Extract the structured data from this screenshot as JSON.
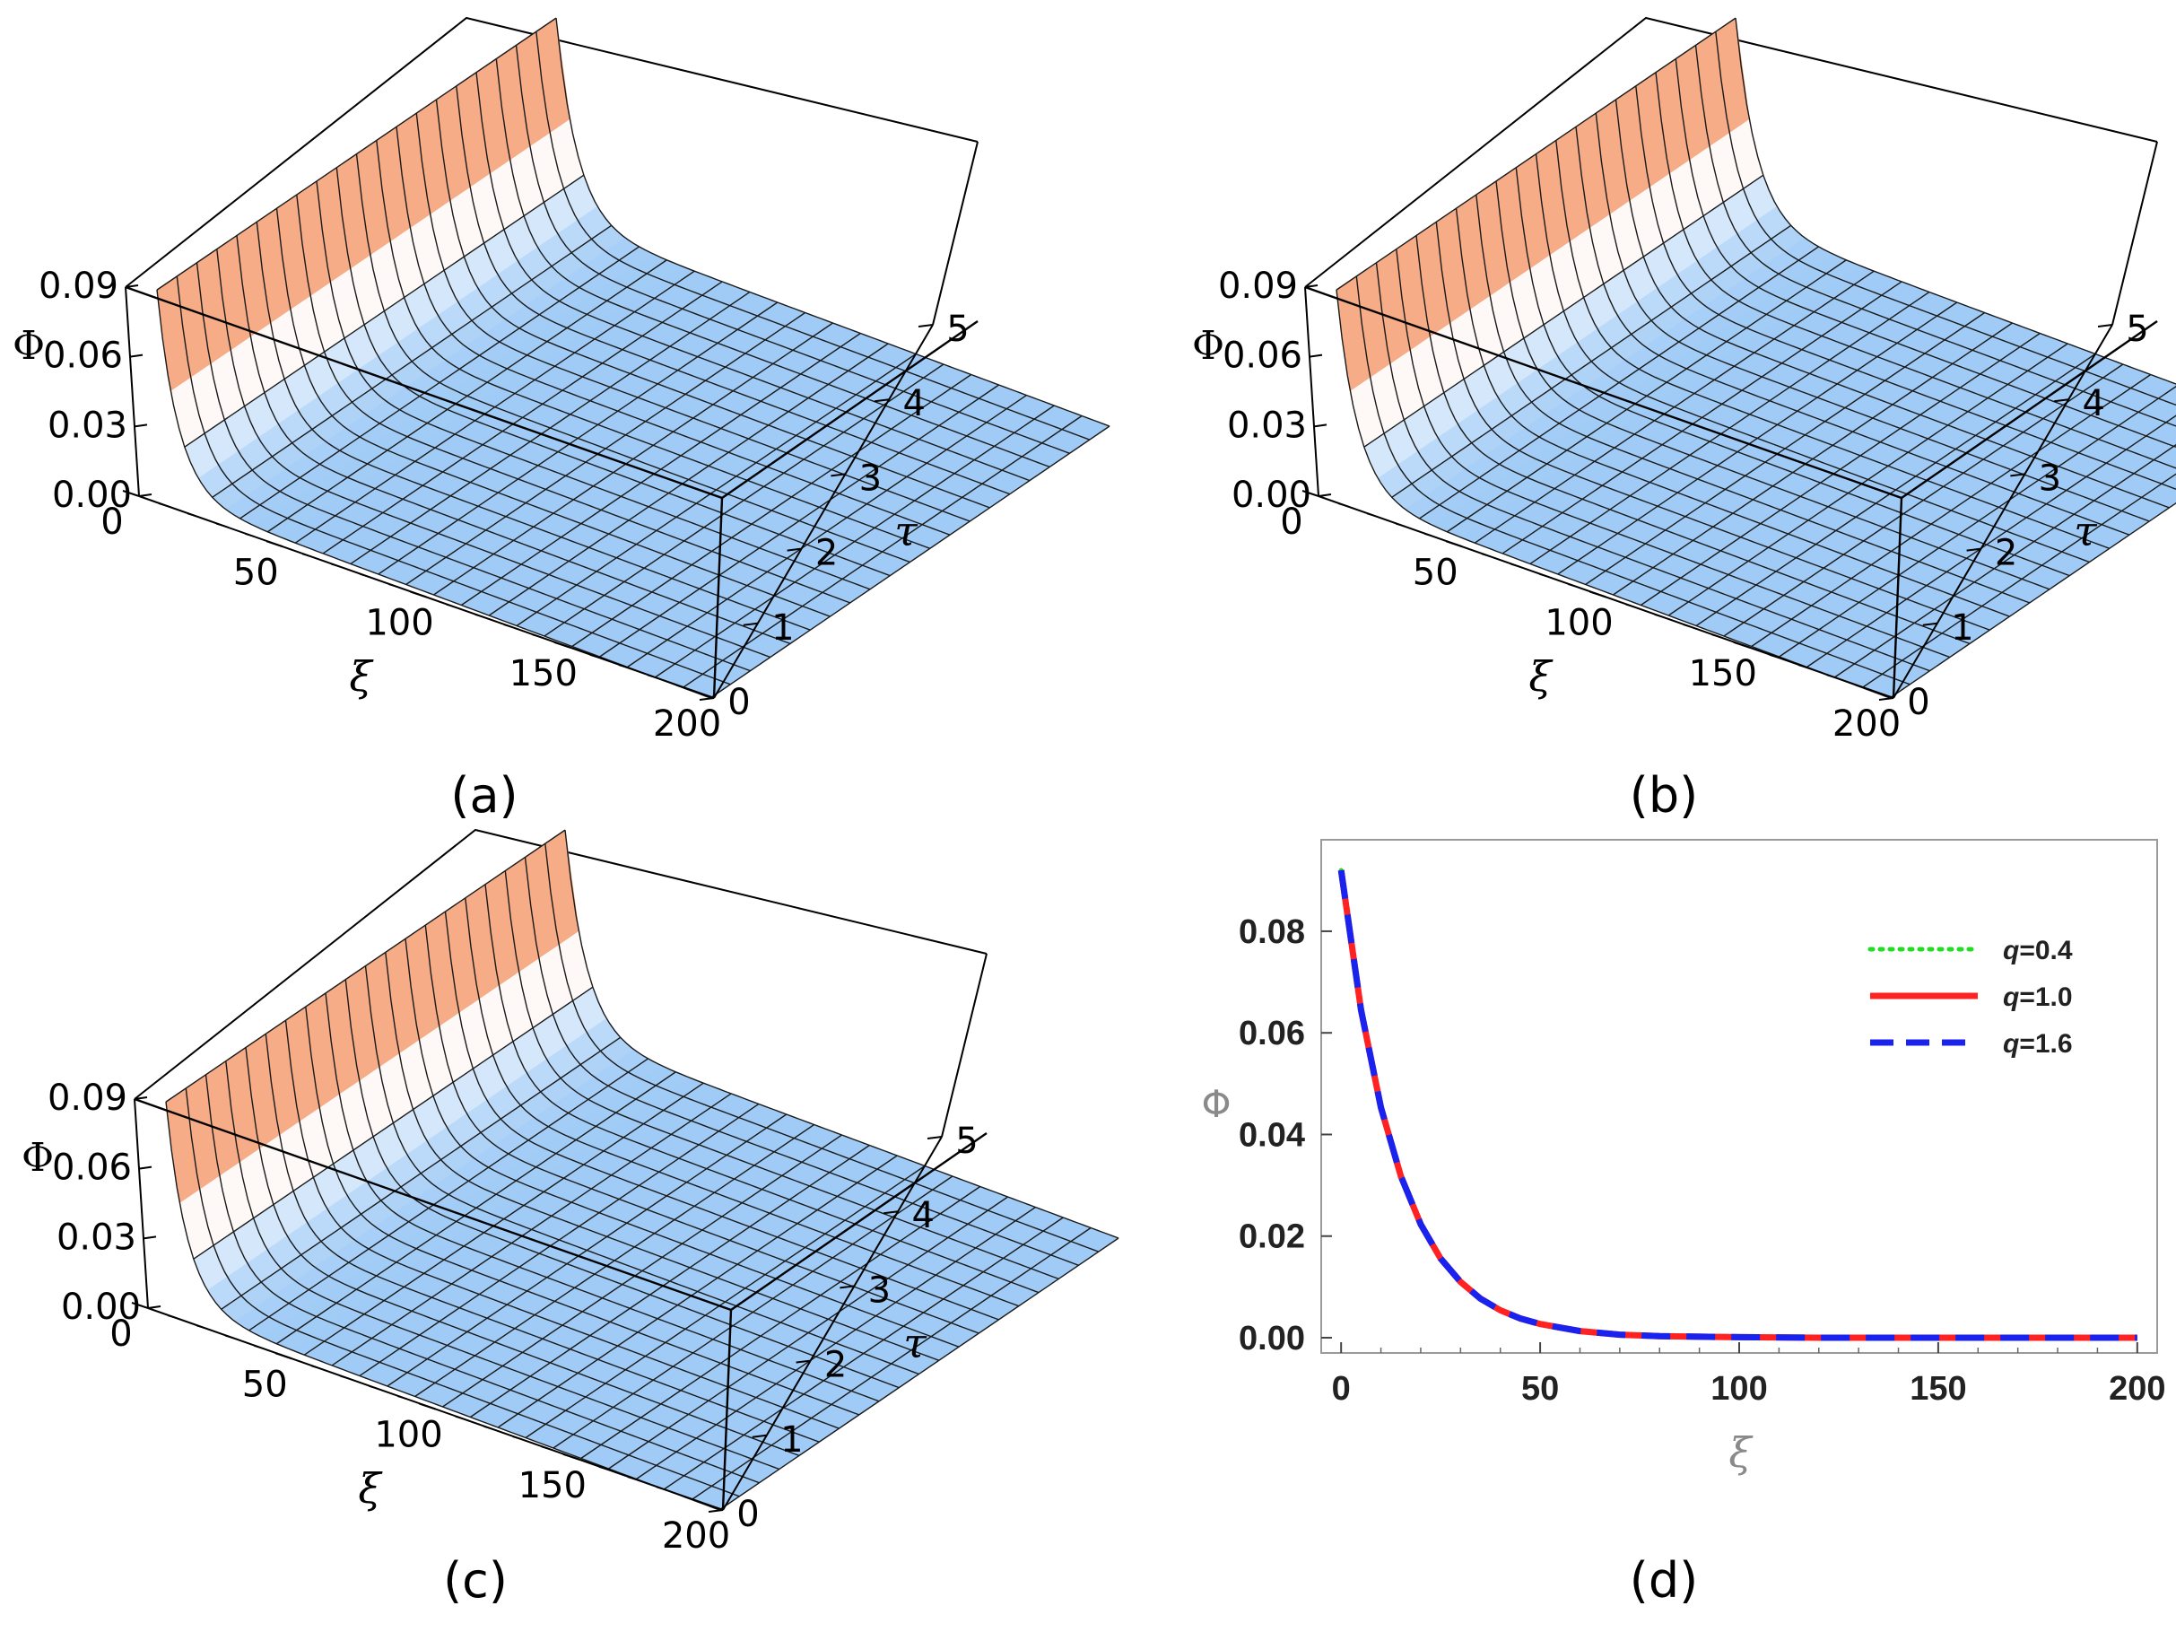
{
  "chart_data": [
    {
      "panel": "(a)",
      "type": "surface",
      "zlabel": "Φ",
      "xlabel": "ξ",
      "ylabel": "τ",
      "x_ticks": [
        "0",
        "50",
        "100",
        "150",
        "200"
      ],
      "y_ticks": [
        "0",
        "1",
        "2",
        "3",
        "4",
        "5"
      ],
      "z_ticks": [
        "0.00",
        "0.03",
        "0.06",
        "0.09"
      ],
      "xlim": [
        0,
        200
      ],
      "ylim": [
        0,
        5
      ],
      "zlim": [
        0,
        0.09
      ],
      "surface": {
        "peak": 0.092,
        "decay": 0.13
      },
      "colors": {
        "high": "#f4a67e",
        "mid": "#ffffff",
        "low": "#9fcbf6"
      }
    },
    {
      "panel": "(b)",
      "type": "surface",
      "zlabel": "Φ",
      "xlabel": "ξ",
      "ylabel": "τ",
      "x_ticks": [
        "0",
        "50",
        "100",
        "150",
        "200"
      ],
      "y_ticks": [
        "0",
        "1",
        "2",
        "3",
        "4",
        "5"
      ],
      "z_ticks": [
        "0.00",
        "0.03",
        "0.06",
        "0.09"
      ],
      "xlim": [
        0,
        200
      ],
      "ylim": [
        0,
        5
      ],
      "zlim": [
        0,
        0.09
      ],
      "surface": {
        "peak": 0.092,
        "decay": 0.13
      },
      "colors": {
        "high": "#f4a67e",
        "mid": "#ffffff",
        "low": "#9fcbf6"
      }
    },
    {
      "panel": "(c)",
      "type": "surface",
      "zlabel": "Φ",
      "xlabel": "ξ",
      "ylabel": "τ",
      "x_ticks": [
        "0",
        "50",
        "100",
        "150",
        "200"
      ],
      "y_ticks": [
        "0",
        "1",
        "2",
        "3",
        "4",
        "5"
      ],
      "z_ticks": [
        "0.00",
        "0.03",
        "0.06",
        "0.09"
      ],
      "xlim": [
        0,
        200
      ],
      "ylim": [
        0,
        5
      ],
      "zlim": [
        0,
        0.09
      ],
      "surface": {
        "peak": 0.092,
        "decay": 0.13
      },
      "colors": {
        "high": "#f4a67e",
        "mid": "#ffffff",
        "low": "#9fcbf6"
      }
    },
    {
      "panel": "(d)",
      "type": "line",
      "xlabel": "ξ",
      "ylabel": "Φ",
      "xlim": [
        -5,
        205
      ],
      "ylim": [
        -0.003,
        0.098
      ],
      "x_ticks": [
        0,
        50,
        100,
        150,
        200
      ],
      "y_ticks": [
        0.0,
        0.02,
        0.04,
        0.06,
        0.08
      ],
      "y_tick_labels": [
        "0.00",
        "0.02",
        "0.04",
        "0.06",
        "0.08"
      ],
      "x": [
        0,
        5,
        10,
        15,
        20,
        25,
        30,
        35,
        40,
        45,
        50,
        60,
        70,
        80,
        100,
        120,
        140,
        160,
        180,
        200
      ],
      "series": [
        {
          "name": "q=0.4",
          "q_label": "q",
          "q_value": "=0.4",
          "color": "#22dd22",
          "style": "dotted",
          "values": [
            0.092,
            0.0645,
            0.0453,
            0.0318,
            0.0223,
            0.0156,
            0.011,
            0.0077,
            0.0054,
            0.0038,
            0.0027,
            0.0013,
            0.0006,
            0.0003,
            0.0001,
            0.0,
            0.0,
            0.0,
            0.0,
            0.0
          ]
        },
        {
          "name": "q=1.0",
          "q_label": "q",
          "q_value": "=1.0",
          "color": "#ff2222",
          "style": "solid",
          "values": [
            0.092,
            0.0645,
            0.0453,
            0.0318,
            0.0223,
            0.0156,
            0.011,
            0.0077,
            0.0054,
            0.0038,
            0.0027,
            0.0013,
            0.0006,
            0.0003,
            0.0001,
            0.0,
            0.0,
            0.0,
            0.0,
            0.0
          ]
        },
        {
          "name": "q=1.6",
          "q_label": "q",
          "q_value": "=1.6",
          "color": "#1a22ee",
          "style": "dashed",
          "values": [
            0.092,
            0.0645,
            0.0453,
            0.0318,
            0.0223,
            0.0156,
            0.011,
            0.0077,
            0.0054,
            0.0038,
            0.0027,
            0.0013,
            0.0006,
            0.0003,
            0.0001,
            0.0,
            0.0,
            0.0,
            0.0,
            0.0
          ]
        }
      ],
      "legend_position": "top-right"
    }
  ]
}
